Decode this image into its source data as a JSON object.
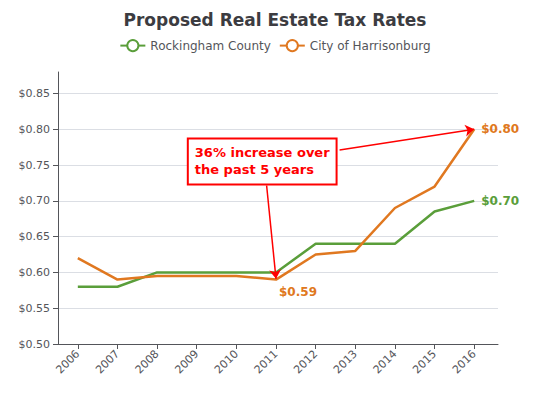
{
  "chart_data": {
    "type": "line",
    "title": "Proposed Real Estate Tax Rates",
    "x": [
      2006,
      2007,
      2008,
      2009,
      2010,
      2011,
      2012,
      2013,
      2014,
      2015,
      2016
    ],
    "series": [
      {
        "name": "Rockingham County",
        "color": "#5a9e3a",
        "values": [
          0.58,
          0.58,
          0.6,
          0.6,
          0.6,
          0.6,
          0.64,
          0.64,
          0.64,
          0.685,
          0.7
        ]
      },
      {
        "name": "City of Harrisonburg",
        "color": "#e07820",
        "values": [
          0.62,
          0.59,
          0.595,
          0.595,
          0.595,
          0.59,
          0.625,
          0.63,
          0.69,
          0.72,
          0.8
        ]
      }
    ],
    "xlim": [
      2005.5,
      2016.6
    ],
    "xticks": [
      2006,
      2007,
      2008,
      2009,
      2010,
      2011,
      2012,
      2013,
      2014,
      2015,
      2016
    ],
    "ylim": [
      0.5,
      0.88
    ],
    "yticks": [
      {
        "value": 0.5,
        "label": "$0.50"
      },
      {
        "value": 0.55,
        "label": "$0.55"
      },
      {
        "value": 0.6,
        "label": "$0.60"
      },
      {
        "value": 0.65,
        "label": "$0.65"
      },
      {
        "value": 0.7,
        "label": "$0.70"
      },
      {
        "value": 0.75,
        "label": "$0.75"
      },
      {
        "value": 0.8,
        "label": "$0.80"
      },
      {
        "value": 0.85,
        "label": "$0.85"
      }
    ],
    "grid": true,
    "legend": "upper center",
    "annotations": [
      {
        "text": "36% increase over\nthe past 5 years",
        "x": 2008.8,
        "y": 0.755,
        "color": "#ff0000",
        "arrows": [
          {
            "x": 2011,
            "y": 0.591
          },
          {
            "x": 2016,
            "y": 0.8
          }
        ]
      },
      {
        "text": "$0.80",
        "x": 2016,
        "y": 0.8,
        "color": "#e07820"
      },
      {
        "text": "$0.70",
        "x": 2016,
        "y": 0.7,
        "color": "#5a9e3a"
      },
      {
        "text": "$0.59",
        "x": 2011,
        "y": 0.59,
        "color": "#e07820"
      }
    ]
  }
}
